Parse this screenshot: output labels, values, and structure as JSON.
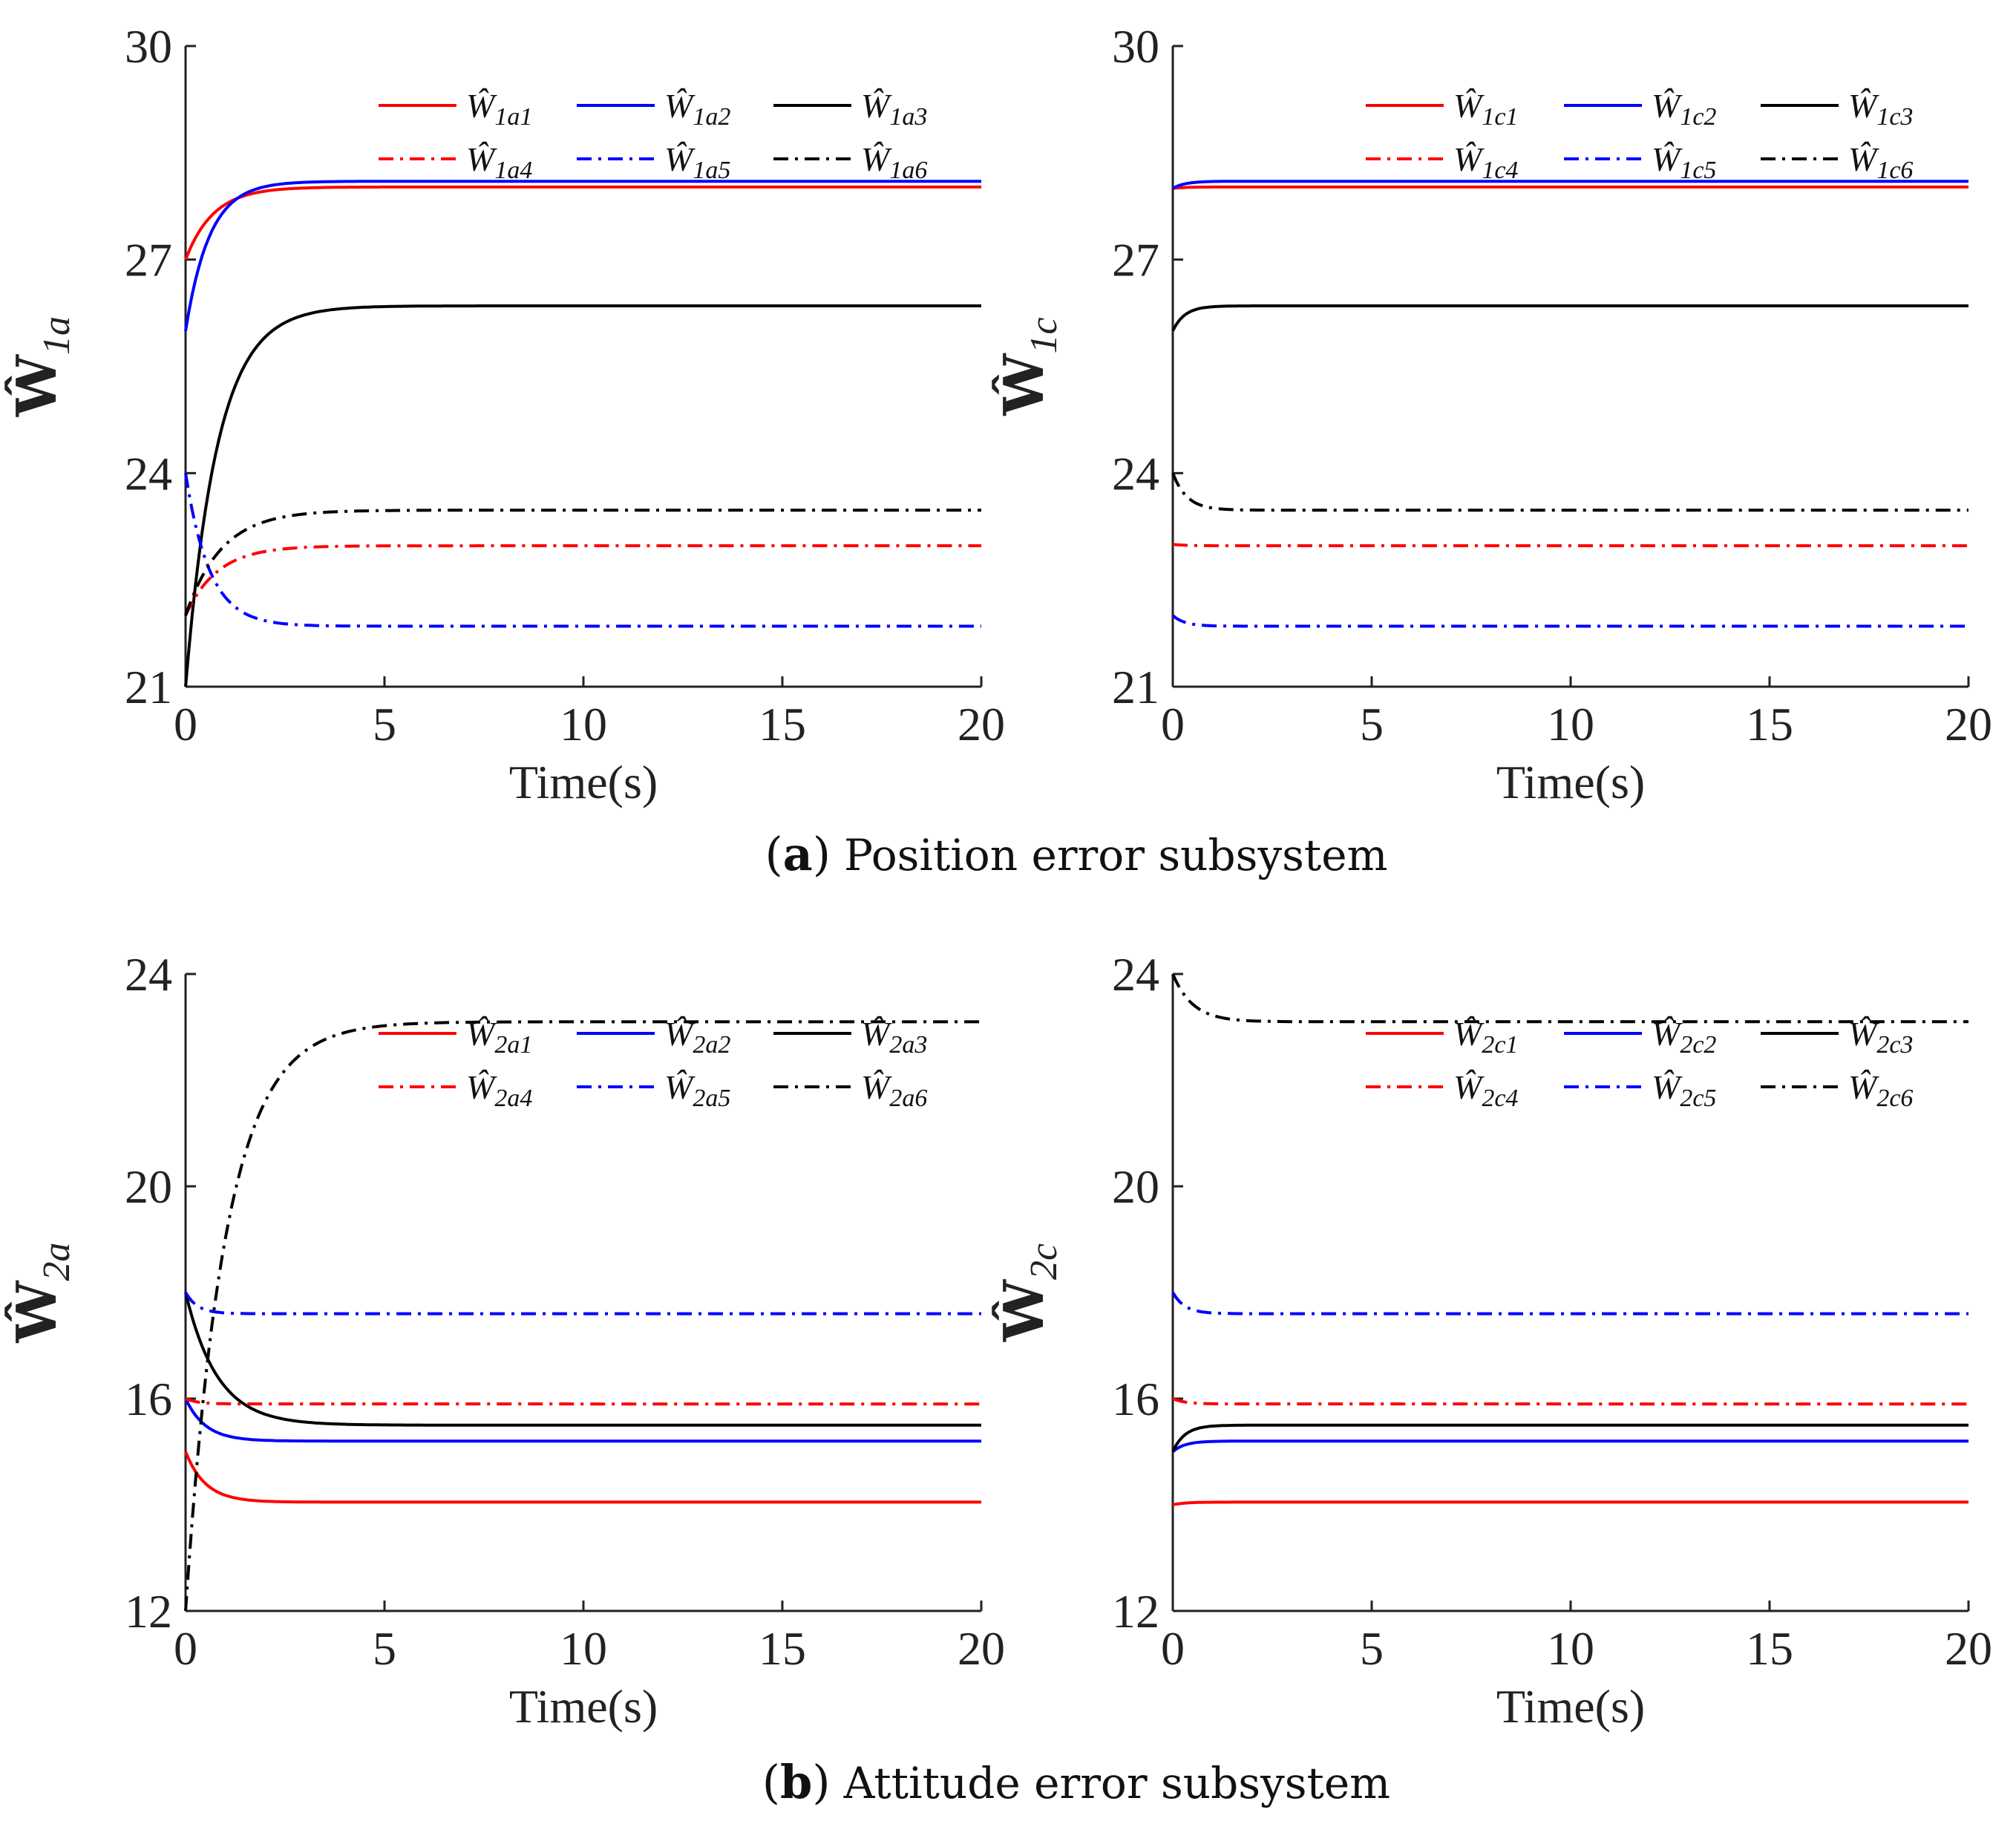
{
  "colors": {
    "red": "#ff0000",
    "blue": "#0000ff",
    "black": "#000000"
  },
  "captions": [
    {
      "letter": "a",
      "text": "Position error subsystem"
    },
    {
      "letter": "b",
      "text": "Attitude error subsystem"
    }
  ],
  "chart_data": [
    {
      "type": "line",
      "title": "",
      "xlabel": "Time(s)",
      "ylabel": "Ŵ",
      "ylabel_sub": "1a",
      "xlim": [
        0,
        20
      ],
      "ylim": [
        21,
        30
      ],
      "xticks": [
        0,
        5,
        10,
        15,
        20
      ],
      "yticks": [
        21,
        24,
        27,
        30
      ],
      "legend_position": "top-right",
      "series": [
        {
          "name": "Ŵ",
          "sub": "1a1",
          "color": "red",
          "style": "solid",
          "start": 27.0,
          "end": 28.02,
          "tau": 0.7
        },
        {
          "name": "Ŵ",
          "sub": "1a2",
          "color": "blue",
          "style": "solid",
          "start": 26.0,
          "end": 28.1,
          "tau": 0.6
        },
        {
          "name": "Ŵ",
          "sub": "1a3",
          "color": "black",
          "style": "solid",
          "start": 21.0,
          "end": 26.35,
          "tau": 0.8
        },
        {
          "name": "Ŵ",
          "sub": "1a4",
          "color": "red",
          "style": "dashdot",
          "start": 22.0,
          "end": 22.98,
          "tau": 0.8
        },
        {
          "name": "Ŵ",
          "sub": "1a5",
          "color": "blue",
          "style": "dashdot",
          "start": 24.0,
          "end": 21.85,
          "tau": 0.6
        },
        {
          "name": "Ŵ",
          "sub": "1a6",
          "color": "black",
          "style": "dashdot",
          "start": 22.0,
          "end": 23.48,
          "tau": 0.9
        }
      ]
    },
    {
      "type": "line",
      "title": "",
      "xlabel": "Time(s)",
      "ylabel": "Ŵ",
      "ylabel_sub": "1c",
      "xlim": [
        0,
        20
      ],
      "ylim": [
        21,
        30
      ],
      "xticks": [
        0,
        5,
        10,
        15,
        20
      ],
      "yticks": [
        21,
        24,
        27,
        30
      ],
      "legend_position": "top-right",
      "series": [
        {
          "name": "Ŵ",
          "sub": "1c1",
          "color": "red",
          "style": "solid",
          "start": 28.0,
          "end": 28.02,
          "tau": 0.3
        },
        {
          "name": "Ŵ",
          "sub": "1c2",
          "color": "blue",
          "style": "solid",
          "start": 28.0,
          "end": 28.1,
          "tau": 0.3
        },
        {
          "name": "Ŵ",
          "sub": "1c3",
          "color": "black",
          "style": "solid",
          "start": 26.0,
          "end": 26.35,
          "tau": 0.3
        },
        {
          "name": "Ŵ",
          "sub": "1c4",
          "color": "red",
          "style": "dashdot",
          "start": 23.0,
          "end": 22.98,
          "tau": 0.3
        },
        {
          "name": "Ŵ",
          "sub": "1c5",
          "color": "blue",
          "style": "dashdot",
          "start": 22.0,
          "end": 21.85,
          "tau": 0.3
        },
        {
          "name": "Ŵ",
          "sub": "1c6",
          "color": "black",
          "style": "dashdot",
          "start": 24.0,
          "end": 23.48,
          "tau": 0.35
        }
      ]
    },
    {
      "type": "line",
      "title": "",
      "xlabel": "Time(s)",
      "ylabel": "Ŵ",
      "ylabel_sub": "2a",
      "xlim": [
        0,
        20
      ],
      "ylim": [
        12,
        24
      ],
      "xticks": [
        0,
        5,
        10,
        15,
        20
      ],
      "yticks": [
        12,
        16,
        20,
        24
      ],
      "legend_position": "top-right",
      "series": [
        {
          "name": "Ŵ",
          "sub": "2a1",
          "color": "red",
          "style": "solid",
          "start": 15.0,
          "end": 14.05,
          "tau": 0.5
        },
        {
          "name": "Ŵ",
          "sub": "2a2",
          "color": "blue",
          "style": "solid",
          "start": 16.0,
          "end": 15.2,
          "tau": 0.5
        },
        {
          "name": "Ŵ",
          "sub": "2a3",
          "color": "black",
          "style": "solid",
          "start": 18.0,
          "end": 15.5,
          "tau": 0.8
        },
        {
          "name": "Ŵ",
          "sub": "2a4",
          "color": "red",
          "style": "dashdot",
          "start": 16.0,
          "end": 15.9,
          "tau": 0.3
        },
        {
          "name": "Ŵ",
          "sub": "2a5",
          "color": "blue",
          "style": "dashdot",
          "start": 18.0,
          "end": 17.6,
          "tau": 0.3
        },
        {
          "name": "Ŵ",
          "sub": "2a6",
          "color": "black",
          "style": "dashdot",
          "start": 12.0,
          "end": 23.1,
          "tau": 1.0
        }
      ]
    },
    {
      "type": "line",
      "title": "",
      "xlabel": "Time(s)",
      "ylabel": "Ŵ",
      "ylabel_sub": "2c",
      "xlim": [
        0,
        20
      ],
      "ylim": [
        12,
        24
      ],
      "xticks": [
        0,
        5,
        10,
        15,
        20
      ],
      "yticks": [
        12,
        16,
        20,
        24
      ],
      "legend_position": "top-right",
      "series": [
        {
          "name": "Ŵ",
          "sub": "2c1",
          "color": "red",
          "style": "solid",
          "start": 14.0,
          "end": 14.05,
          "tau": 0.3
        },
        {
          "name": "Ŵ",
          "sub": "2c2",
          "color": "blue",
          "style": "solid",
          "start": 15.0,
          "end": 15.2,
          "tau": 0.3
        },
        {
          "name": "Ŵ",
          "sub": "2c3",
          "color": "black",
          "style": "solid",
          "start": 15.0,
          "end": 15.5,
          "tau": 0.3
        },
        {
          "name": "Ŵ",
          "sub": "2c4",
          "color": "red",
          "style": "dashdot",
          "start": 16.0,
          "end": 15.9,
          "tau": 0.3
        },
        {
          "name": "Ŵ",
          "sub": "2c5",
          "color": "blue",
          "style": "dashdot",
          "start": 18.0,
          "end": 17.6,
          "tau": 0.3
        },
        {
          "name": "Ŵ",
          "sub": "2c6",
          "color": "black",
          "style": "dashdot",
          "start": 24.0,
          "end": 23.1,
          "tau": 0.5
        }
      ]
    }
  ]
}
